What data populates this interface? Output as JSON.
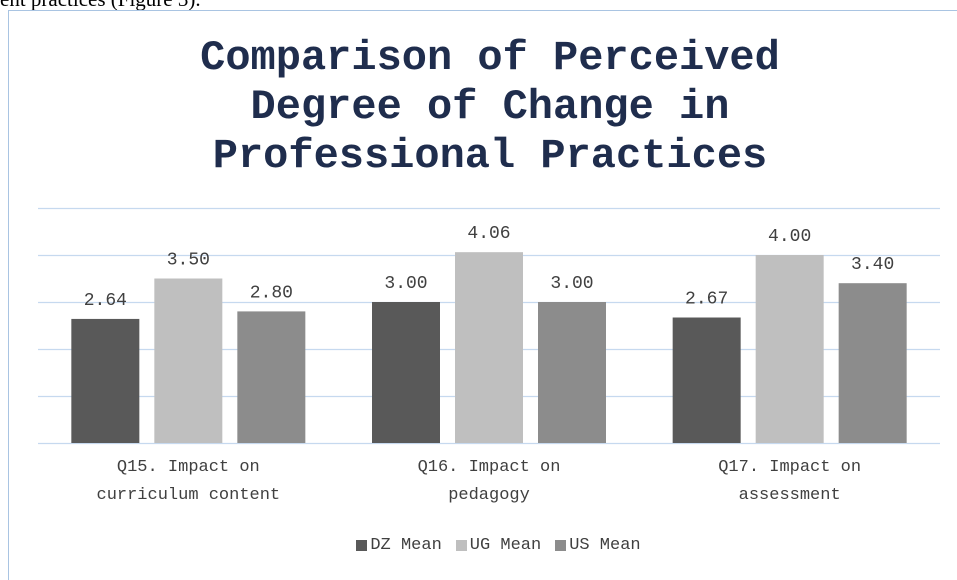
{
  "page_text": "ent practices (Figure 3).",
  "chart_data": {
    "type": "bar",
    "title": "Comparison of Perceived Degree of Change in Professional Practices",
    "categories": [
      "Q15. Impact on curriculum content",
      "Q16. Impact on pedagogy",
      "Q17. Impact on assessment"
    ],
    "series": [
      {
        "name": "DZ Mean",
        "color": "#595959",
        "values": [
          2.64,
          3.0,
          2.67
        ],
        "value_labels": [
          "2.64",
          "3.00",
          "2.67"
        ]
      },
      {
        "name": "UG Mean",
        "color": "#bfbfbf",
        "values": [
          3.5,
          4.06,
          4.0
        ],
        "value_labels": [
          "3.50",
          "4.06",
          "4.00"
        ]
      },
      {
        "name": "US Mean",
        "color": "#8c8c8c",
        "values": [
          2.8,
          3.0,
          3.4
        ],
        "value_labels": [
          "2.80",
          "3.00",
          "3.40"
        ]
      }
    ],
    "ylim": [
      0,
      5
    ],
    "yticks": [
      0,
      1,
      2,
      3,
      4,
      5
    ],
    "grid": true,
    "legend": "bottom"
  }
}
